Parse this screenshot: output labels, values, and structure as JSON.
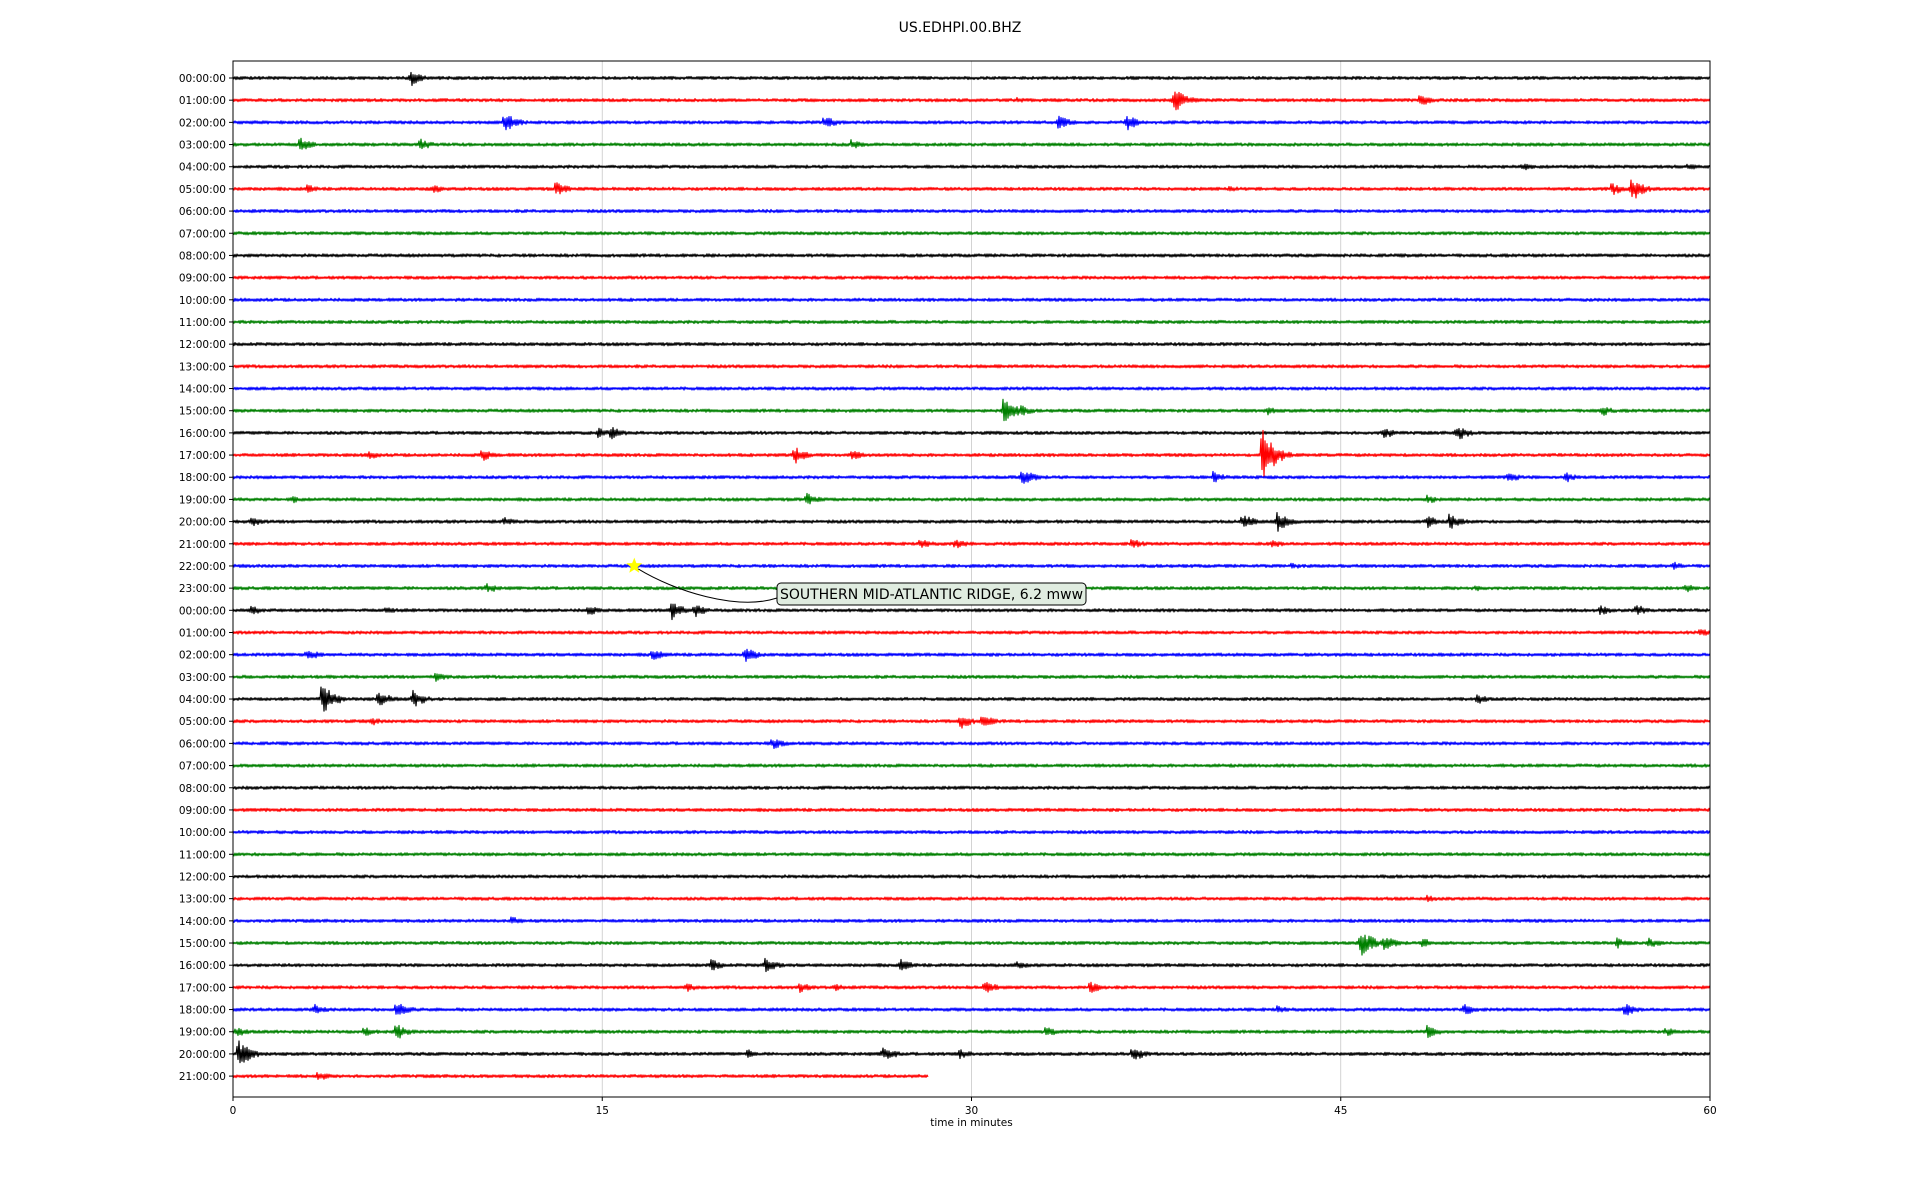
{
  "chart_data": {
    "type": "line",
    "title": "US.EDHPI.00.BHZ",
    "xlabel": "time in minutes",
    "xlim": [
      0,
      60
    ],
    "x_ticks": [
      0,
      15,
      30,
      45,
      60
    ],
    "grid": "vertical",
    "trace_colors": [
      "#000000",
      "#ff0000",
      "#0000ff",
      "#008000"
    ],
    "hour_labels": [
      "00:00:00",
      "01:00:00",
      "02:00:00",
      "03:00:00",
      "04:00:00",
      "05:00:00",
      "06:00:00",
      "07:00:00",
      "08:00:00",
      "09:00:00",
      "10:00:00",
      "11:00:00",
      "12:00:00",
      "13:00:00",
      "14:00:00",
      "15:00:00",
      "16:00:00",
      "17:00:00",
      "18:00:00",
      "19:00:00",
      "20:00:00",
      "21:00:00",
      "22:00:00",
      "23:00:00",
      "00:00:00",
      "01:00:00",
      "02:00:00",
      "03:00:00",
      "04:00:00",
      "05:00:00",
      "06:00:00",
      "07:00:00",
      "08:00:00",
      "09:00:00",
      "10:00:00",
      "11:00:00",
      "12:00:00",
      "13:00:00",
      "14:00:00",
      "15:00:00",
      "16:00:00",
      "17:00:00",
      "18:00:00",
      "19:00:00",
      "20:00:00",
      "21:00:00"
    ],
    "last_trace_end_minute": 28.2,
    "events": [
      {
        "row": 0,
        "minute": 7.2,
        "amp": 0.9
      },
      {
        "row": 1,
        "minute": 31.8,
        "amp": 0.4
      },
      {
        "row": 1,
        "minute": 38.2,
        "amp": 1.4
      },
      {
        "row": 1,
        "minute": 48.2,
        "amp": 0.8
      },
      {
        "row": 2,
        "minute": 11.0,
        "amp": 1.2
      },
      {
        "row": 2,
        "minute": 24.0,
        "amp": 0.8
      },
      {
        "row": 2,
        "minute": 33.5,
        "amp": 0.9
      },
      {
        "row": 2,
        "minute": 36.3,
        "amp": 0.9
      },
      {
        "row": 3,
        "minute": 2.7,
        "amp": 0.8
      },
      {
        "row": 3,
        "minute": 7.6,
        "amp": 0.7
      },
      {
        "row": 3,
        "minute": 25.1,
        "amp": 0.6
      },
      {
        "row": 4,
        "minute": 52.3,
        "amp": 0.5
      },
      {
        "row": 4,
        "minute": 59.1,
        "amp": 0.4
      },
      {
        "row": 5,
        "minute": 3.0,
        "amp": 0.5
      },
      {
        "row": 5,
        "minute": 8.1,
        "amp": 0.5
      },
      {
        "row": 5,
        "minute": 13.1,
        "amp": 0.8
      },
      {
        "row": 5,
        "minute": 40.5,
        "amp": 0.4
      },
      {
        "row": 5,
        "minute": 56.0,
        "amp": 0.7
      },
      {
        "row": 5,
        "minute": 56.8,
        "amp": 1.4
      },
      {
        "row": 15,
        "minute": 31.3,
        "amp": 1.7
      },
      {
        "row": 15,
        "minute": 32.0,
        "amp": 0.6
      },
      {
        "row": 15,
        "minute": 42.0,
        "amp": 0.5
      },
      {
        "row": 15,
        "minute": 55.6,
        "amp": 0.6
      },
      {
        "row": 16,
        "minute": 14.8,
        "amp": 0.6
      },
      {
        "row": 16,
        "minute": 15.3,
        "amp": 0.8
      },
      {
        "row": 16,
        "minute": 46.7,
        "amp": 0.7
      },
      {
        "row": 16,
        "minute": 49.7,
        "amp": 0.9
      },
      {
        "row": 17,
        "minute": 5.5,
        "amp": 0.5
      },
      {
        "row": 17,
        "minute": 10.1,
        "amp": 0.7
      },
      {
        "row": 17,
        "minute": 22.8,
        "amp": 1.0
      },
      {
        "row": 17,
        "minute": 25.1,
        "amp": 0.6
      },
      {
        "row": 17,
        "minute": 41.8,
        "amp": 3.0
      },
      {
        "row": 18,
        "minute": 32.0,
        "amp": 1.1
      },
      {
        "row": 18,
        "minute": 39.8,
        "amp": 0.7
      },
      {
        "row": 18,
        "minute": 51.8,
        "amp": 0.6
      },
      {
        "row": 18,
        "minute": 54.1,
        "amp": 0.6
      },
      {
        "row": 19,
        "minute": 2.4,
        "amp": 0.4
      },
      {
        "row": 19,
        "minute": 23.3,
        "amp": 0.7
      },
      {
        "row": 19,
        "minute": 48.5,
        "amp": 0.5
      },
      {
        "row": 20,
        "minute": 0.7,
        "amp": 0.6
      },
      {
        "row": 20,
        "minute": 11.0,
        "amp": 0.5
      },
      {
        "row": 20,
        "minute": 41.0,
        "amp": 0.9
      },
      {
        "row": 20,
        "minute": 42.4,
        "amp": 1.2
      },
      {
        "row": 20,
        "minute": 48.5,
        "amp": 0.7
      },
      {
        "row": 20,
        "minute": 49.4,
        "amp": 0.9
      },
      {
        "row": 21,
        "minute": 27.9,
        "amp": 0.6
      },
      {
        "row": 21,
        "minute": 29.3,
        "amp": 0.6
      },
      {
        "row": 21,
        "minute": 36.5,
        "amp": 0.6
      },
      {
        "row": 21,
        "minute": 42.2,
        "amp": 0.5
      },
      {
        "row": 22,
        "minute": 43.0,
        "amp": 0.4
      },
      {
        "row": 22,
        "minute": 58.5,
        "amp": 0.5
      },
      {
        "row": 23,
        "minute": 10.3,
        "amp": 0.6
      },
      {
        "row": 23,
        "minute": 50.5,
        "amp": 0.4
      },
      {
        "row": 23,
        "minute": 59.0,
        "amp": 0.5
      },
      {
        "row": 24,
        "minute": 0.7,
        "amp": 0.6
      },
      {
        "row": 24,
        "minute": 6.2,
        "amp": 0.5
      },
      {
        "row": 24,
        "minute": 14.4,
        "amp": 0.6
      },
      {
        "row": 24,
        "minute": 17.8,
        "amp": 1.1
      },
      {
        "row": 24,
        "minute": 18.7,
        "amp": 0.8
      },
      {
        "row": 24,
        "minute": 55.5,
        "amp": 0.6
      },
      {
        "row": 24,
        "minute": 57.0,
        "amp": 0.7
      },
      {
        "row": 25,
        "minute": 59.6,
        "amp": 0.5
      },
      {
        "row": 26,
        "minute": 3.0,
        "amp": 0.7
      },
      {
        "row": 26,
        "minute": 17.0,
        "amp": 0.7
      },
      {
        "row": 26,
        "minute": 20.8,
        "amp": 0.9
      },
      {
        "row": 27,
        "minute": 8.2,
        "amp": 0.6
      },
      {
        "row": 28,
        "minute": 3.6,
        "amp": 1.8
      },
      {
        "row": 28,
        "minute": 5.9,
        "amp": 1.0
      },
      {
        "row": 28,
        "minute": 7.3,
        "amp": 1.0
      },
      {
        "row": 28,
        "minute": 50.5,
        "amp": 0.6
      },
      {
        "row": 29,
        "minute": 5.6,
        "amp": 0.5
      },
      {
        "row": 29,
        "minute": 29.5,
        "amp": 0.9
      },
      {
        "row": 29,
        "minute": 30.4,
        "amp": 0.8
      },
      {
        "row": 30,
        "minute": 21.9,
        "amp": 0.7
      },
      {
        "row": 37,
        "minute": 48.5,
        "amp": 0.4
      },
      {
        "row": 38,
        "minute": 11.3,
        "amp": 0.5
      },
      {
        "row": 39,
        "minute": 45.8,
        "amp": 1.7
      },
      {
        "row": 39,
        "minute": 46.7,
        "amp": 1.0
      },
      {
        "row": 39,
        "minute": 48.3,
        "amp": 0.6
      },
      {
        "row": 39,
        "minute": 56.2,
        "amp": 0.6
      },
      {
        "row": 39,
        "minute": 57.5,
        "amp": 0.6
      },
      {
        "row": 40,
        "minute": 19.4,
        "amp": 0.7
      },
      {
        "row": 40,
        "minute": 21.6,
        "amp": 0.9
      },
      {
        "row": 40,
        "minute": 27.1,
        "amp": 0.7
      },
      {
        "row": 40,
        "minute": 31.8,
        "amp": 0.5
      },
      {
        "row": 41,
        "minute": 18.4,
        "amp": 0.5
      },
      {
        "row": 41,
        "minute": 23.0,
        "amp": 0.6
      },
      {
        "row": 41,
        "minute": 24.4,
        "amp": 0.5
      },
      {
        "row": 41,
        "minute": 30.5,
        "amp": 0.8
      },
      {
        "row": 41,
        "minute": 34.8,
        "amp": 0.7
      },
      {
        "row": 42,
        "minute": 3.3,
        "amp": 0.6
      },
      {
        "row": 42,
        "minute": 6.6,
        "amp": 1.0
      },
      {
        "row": 42,
        "minute": 42.4,
        "amp": 0.5
      },
      {
        "row": 42,
        "minute": 50.0,
        "amp": 0.7
      },
      {
        "row": 42,
        "minute": 56.5,
        "amp": 0.8
      },
      {
        "row": 43,
        "minute": 0.1,
        "amp": 0.6
      },
      {
        "row": 43,
        "minute": 5.3,
        "amp": 0.6
      },
      {
        "row": 43,
        "minute": 6.6,
        "amp": 1.0
      },
      {
        "row": 43,
        "minute": 33.0,
        "amp": 0.6
      },
      {
        "row": 43,
        "minute": 48.5,
        "amp": 0.7
      },
      {
        "row": 43,
        "minute": 58.2,
        "amp": 0.5
      },
      {
        "row": 44,
        "minute": 0.2,
        "amp": 1.6
      },
      {
        "row": 44,
        "minute": 20.9,
        "amp": 0.5
      },
      {
        "row": 44,
        "minute": 26.4,
        "amp": 0.9
      },
      {
        "row": 44,
        "minute": 29.5,
        "amp": 0.6
      },
      {
        "row": 44,
        "minute": 36.5,
        "amp": 0.9
      },
      {
        "row": 45,
        "minute": 3.4,
        "amp": 0.6
      }
    ],
    "annotations": [
      {
        "text": "SOUTHERN MID-ATLANTIC RIDGE, 6.2 mww",
        "row": 22,
        "minute": 16.3,
        "marker": "star",
        "marker_color": "#ffff00"
      }
    ]
  }
}
